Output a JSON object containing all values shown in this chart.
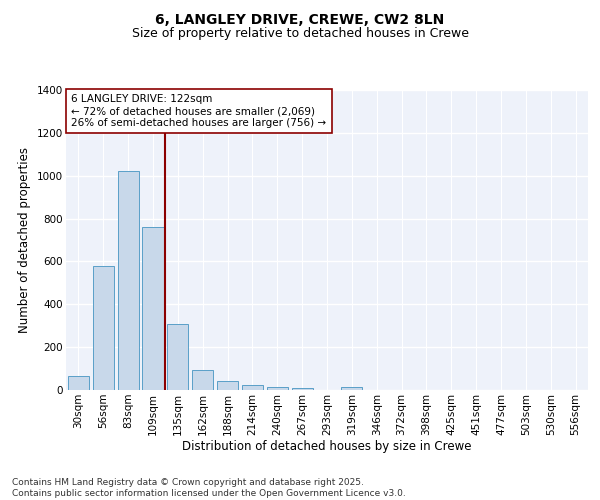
{
  "title_line1": "6, LANGLEY DRIVE, CREWE, CW2 8LN",
  "title_line2": "Size of property relative to detached houses in Crewe",
  "xlabel": "Distribution of detached houses by size in Crewe",
  "ylabel": "Number of detached properties",
  "categories": [
    "30sqm",
    "56sqm",
    "83sqm",
    "109sqm",
    "135sqm",
    "162sqm",
    "188sqm",
    "214sqm",
    "240sqm",
    "267sqm",
    "293sqm",
    "319sqm",
    "346sqm",
    "372sqm",
    "398sqm",
    "425sqm",
    "451sqm",
    "477sqm",
    "503sqm",
    "530sqm",
    "556sqm"
  ],
  "values": [
    65,
    580,
    1020,
    760,
    310,
    95,
    42,
    22,
    15,
    8,
    0,
    12,
    0,
    0,
    0,
    0,
    0,
    0,
    0,
    0,
    0
  ],
  "bar_color": "#c8d8ea",
  "bar_edge_color": "#5a9fc8",
  "vline_x": 3.5,
  "vline_color": "#8b0000",
  "annotation_line1": "6 LANGLEY DRIVE: 122sqm",
  "annotation_line2": "← 72% of detached houses are smaller (2,069)",
  "annotation_line3": "26% of semi-detached houses are larger (756) →",
  "annotation_box_color": "#8b0000",
  "ylim": [
    0,
    1400
  ],
  "yticks": [
    0,
    200,
    400,
    600,
    800,
    1000,
    1200,
    1400
  ],
  "background_color": "#eef2fa",
  "grid_color": "#ffffff",
  "footer_text": "Contains HM Land Registry data © Crown copyright and database right 2025.\nContains public sector information licensed under the Open Government Licence v3.0.",
  "title_fontsize": 10,
  "subtitle_fontsize": 9,
  "axis_label_fontsize": 8.5,
  "tick_fontsize": 7.5,
  "annotation_fontsize": 7.5,
  "footer_fontsize": 6.5
}
